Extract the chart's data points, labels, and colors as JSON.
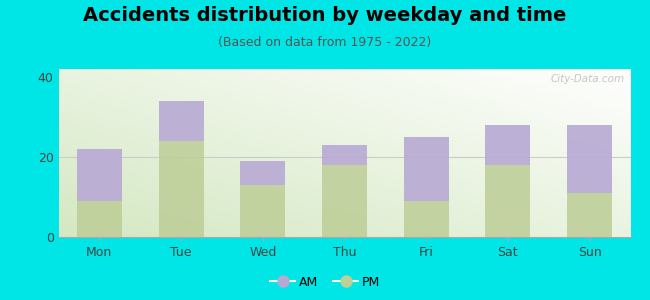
{
  "title": "Accidents distribution by weekday and time",
  "subtitle": "(Based on data from 1975 - 2022)",
  "categories": [
    "Mon",
    "Tue",
    "Wed",
    "Thu",
    "Fri",
    "Sat",
    "Sun"
  ],
  "pm_values": [
    9,
    24,
    13,
    18,
    9,
    18,
    11
  ],
  "am_values": [
    13,
    10,
    6,
    5,
    16,
    10,
    17
  ],
  "am_color": "#b8a9d4",
  "pm_color": "#bfcf9a",
  "ylim": [
    0,
    42
  ],
  "yticks": [
    0,
    20,
    40
  ],
  "background_color": "#00e5e5",
  "plot_bg_color_topleft": "#e8f3e0",
  "plot_bg_color_bottomright": "#f8fdf5",
  "bar_width": 0.55,
  "watermark": "City-Data.com",
  "legend_am": "AM",
  "legend_pm": "PM",
  "title_fontsize": 14,
  "subtitle_fontsize": 9,
  "tick_fontsize": 9
}
